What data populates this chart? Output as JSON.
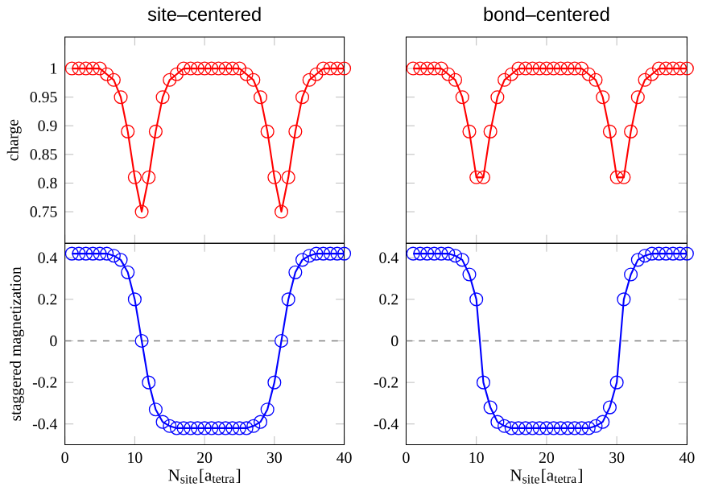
{
  "chart_data": [
    {
      "type": "line",
      "title": "site–centered",
      "ylabel": "charge",
      "x": [
        1,
        2,
        3,
        4,
        5,
        6,
        7,
        8,
        9,
        10,
        11,
        12,
        13,
        14,
        15,
        16,
        17,
        18,
        19,
        20,
        21,
        22,
        23,
        24,
        25,
        26,
        27,
        28,
        29,
        30,
        31,
        32,
        33,
        34,
        35,
        36,
        37,
        38,
        39,
        40
      ],
      "series": [
        {
          "color": "#ff0000",
          "values": [
            1,
            1,
            1,
            1,
            1,
            0.99,
            0.98,
            0.95,
            0.89,
            0.81,
            0.75,
            0.81,
            0.89,
            0.95,
            0.98,
            0.99,
            1,
            1,
            1,
            1,
            1,
            1,
            1,
            1,
            1,
            0.99,
            0.98,
            0.95,
            0.89,
            0.81,
            0.75,
            0.81,
            0.89,
            0.95,
            0.98,
            0.99,
            1,
            1,
            1,
            1
          ]
        }
      ],
      "xlim": [
        0,
        40
      ],
      "xticks": [
        0,
        10,
        20,
        30,
        40
      ],
      "ylim": [
        0.695,
        1.055
      ],
      "yticks": [
        0.75,
        0.8,
        0.85,
        0.9,
        0.95,
        1
      ],
      "marker": "circle",
      "line_style": "solid",
      "tick_labels": "y"
    },
    {
      "type": "line",
      "title": "bond–centered",
      "x": [
        1,
        2,
        3,
        4,
        5,
        6,
        7,
        8,
        9,
        10,
        11,
        12,
        13,
        14,
        15,
        16,
        17,
        18,
        19,
        20,
        21,
        22,
        23,
        24,
        25,
        26,
        27,
        28,
        29,
        30,
        31,
        32,
        33,
        34,
        35,
        36,
        37,
        38,
        39,
        40
      ],
      "series": [
        {
          "color": "#ff0000",
          "values": [
            1,
            1,
            1,
            1,
            1,
            0.99,
            0.98,
            0.95,
            0.89,
            0.81,
            0.81,
            0.89,
            0.95,
            0.98,
            0.99,
            1,
            1,
            1,
            1,
            1,
            1,
            1,
            1,
            1,
            1,
            0.99,
            0.98,
            0.95,
            0.89,
            0.81,
            0.81,
            0.89,
            0.95,
            0.98,
            0.99,
            1,
            1,
            1,
            1,
            1
          ]
        }
      ],
      "xlim": [
        0,
        40
      ],
      "xticks": [
        0,
        10,
        20,
        30,
        40
      ],
      "ylim": [
        0.695,
        1.055
      ],
      "yticks": [
        0.75,
        0.8,
        0.85,
        0.9,
        0.95,
        1
      ],
      "marker": "circle",
      "line_style": "solid",
      "tick_labels": false
    },
    {
      "type": "line",
      "xlabel": "N$_{site}$[a$_{tetra}$]",
      "ylabel": "staggered magnetization",
      "x": [
        1,
        2,
        3,
        4,
        5,
        6,
        7,
        8,
        9,
        10,
        11,
        12,
        13,
        14,
        15,
        16,
        17,
        18,
        19,
        20,
        21,
        22,
        23,
        24,
        25,
        26,
        27,
        28,
        29,
        30,
        31,
        32,
        33,
        34,
        35,
        36,
        37,
        38,
        39,
        40
      ],
      "series": [
        {
          "color": "#0000ff",
          "values": [
            0.42,
            0.42,
            0.42,
            0.42,
            0.42,
            0.42,
            0.41,
            0.39,
            0.33,
            0.2,
            0,
            -0.2,
            -0.33,
            -0.39,
            -0.41,
            -0.42,
            -0.42,
            -0.42,
            -0.42,
            -0.42,
            -0.42,
            -0.42,
            -0.42,
            -0.42,
            -0.42,
            -0.42,
            -0.41,
            -0.39,
            -0.33,
            -0.2,
            0,
            0.2,
            0.33,
            0.39,
            0.41,
            0.42,
            0.42,
            0.42,
            0.42,
            0.42
          ]
        }
      ],
      "xlim": [
        0,
        40
      ],
      "xticks": [
        0,
        10,
        20,
        30,
        40
      ],
      "ylim": [
        -0.5,
        0.47
      ],
      "yticks": [
        -0.4,
        -0.2,
        0,
        0.2,
        0.4
      ],
      "marker": "circle",
      "line_style": "solid",
      "ref_lines": [
        {
          "axis": "y",
          "value": 0,
          "color": "#808080",
          "line_style": "dashed"
        }
      ]
    },
    {
      "type": "line",
      "xlabel": "N$_{site}$[a$_{tetra}$]",
      "x": [
        1,
        2,
        3,
        4,
        5,
        6,
        7,
        8,
        9,
        10,
        11,
        12,
        13,
        14,
        15,
        16,
        17,
        18,
        19,
        20,
        21,
        22,
        23,
        24,
        25,
        26,
        27,
        28,
        29,
        30,
        31,
        32,
        33,
        34,
        35,
        36,
        37,
        38,
        39,
        40
      ],
      "series": [
        {
          "color": "#0000ff",
          "values": [
            0.42,
            0.42,
            0.42,
            0.42,
            0.42,
            0.42,
            0.41,
            0.39,
            0.32,
            0.2,
            -0.2,
            -0.32,
            -0.39,
            -0.41,
            -0.42,
            -0.42,
            -0.42,
            -0.42,
            -0.42,
            -0.42,
            -0.42,
            -0.42,
            -0.42,
            -0.42,
            -0.42,
            -0.42,
            -0.41,
            -0.39,
            -0.32,
            -0.2,
            0.2,
            0.32,
            0.39,
            0.41,
            0.42,
            0.42,
            0.42,
            0.42,
            0.42,
            0.42
          ]
        }
      ],
      "xlim": [
        0,
        40
      ],
      "xticks": [
        0,
        10,
        20,
        30,
        40
      ],
      "ylim": [
        -0.5,
        0.47
      ],
      "yticks": [
        -0.4,
        -0.2,
        0,
        0.2,
        0.4
      ],
      "marker": "circle",
      "line_style": "solid",
      "ref_lines": [
        {
          "axis": "y",
          "value": 0,
          "color": "#808080",
          "line_style": "dashed"
        }
      ]
    }
  ]
}
